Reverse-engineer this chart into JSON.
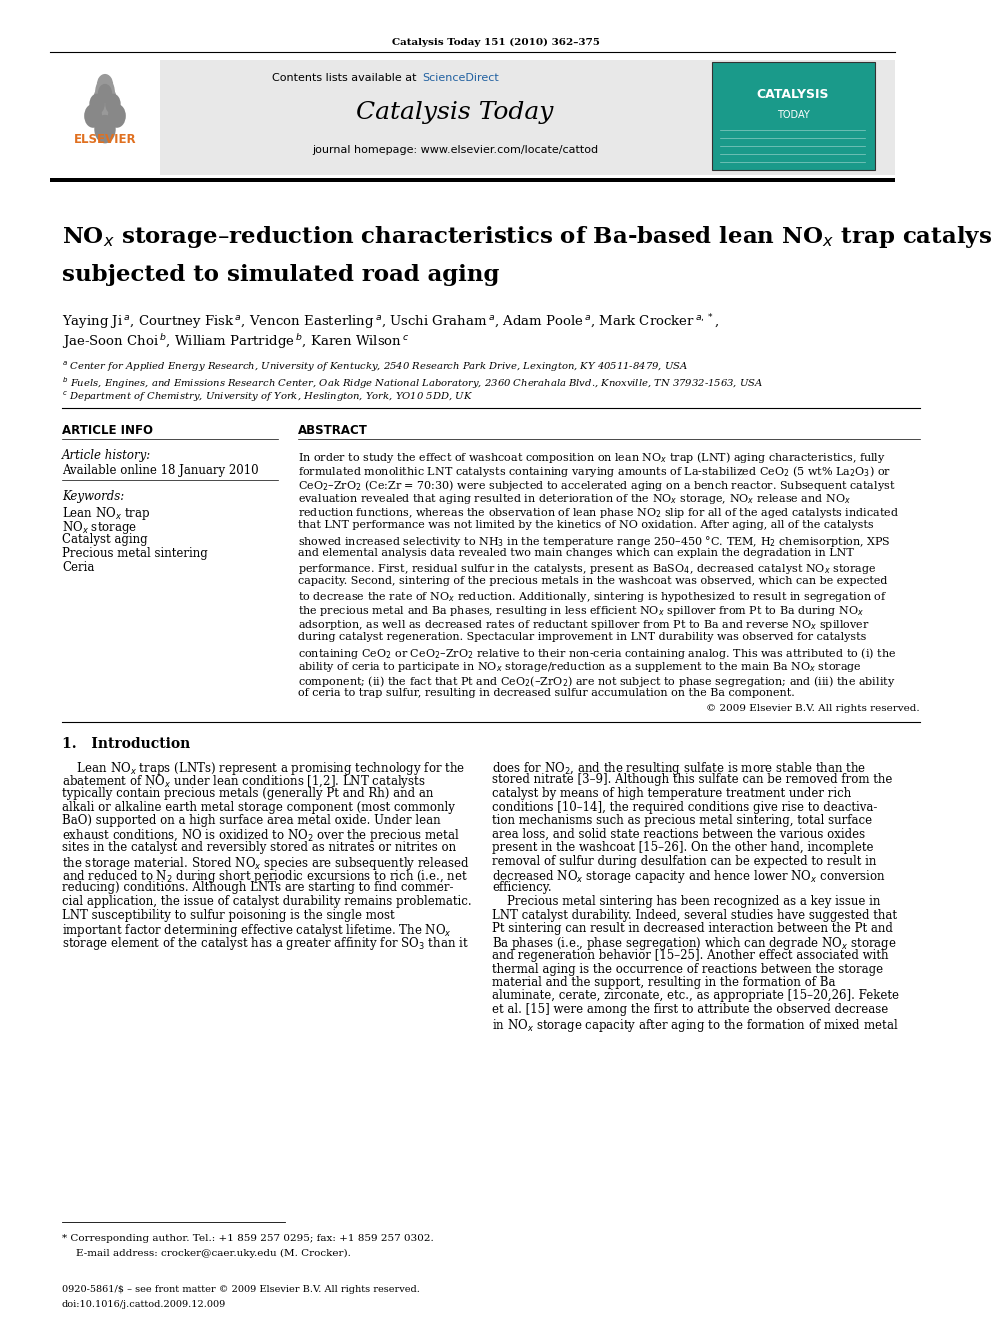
{
  "page_width": 9.92,
  "page_height": 13.23,
  "bg_color": "#ffffff",
  "top_journal_ref": "Catalysis Today 151 (2010) 362–375",
  "header_bg": "#e8e8e8",
  "sciencedirect_color": "#2060a0",
  "journal_cover_bg": "#1a9a8a",
  "article_info_title": "ARTICLE INFO",
  "article_history_label": "Article history:",
  "article_history_date": "Available online 18 January 2010",
  "keywords_label": "Keywords:",
  "abstract_title": "ABSTRACT",
  "abstract_footer": "© 2009 Elsevier B.V. All rights reserved.",
  "section1_title": "1. Introduction",
  "footnote_star": "* Corresponding author. Tel.: +1 859 257 0295; fax: +1 859 257 0302.",
  "footnote_email": "E-mail address: crocker@caer.uky.edu (M. Crocker).",
  "footer_issn": "0920-5861/$ – see front matter © 2009 Elsevier B.V. All rights reserved.",
  "footer_doi": "doi:10.1016/j.cattod.2009.12.009"
}
